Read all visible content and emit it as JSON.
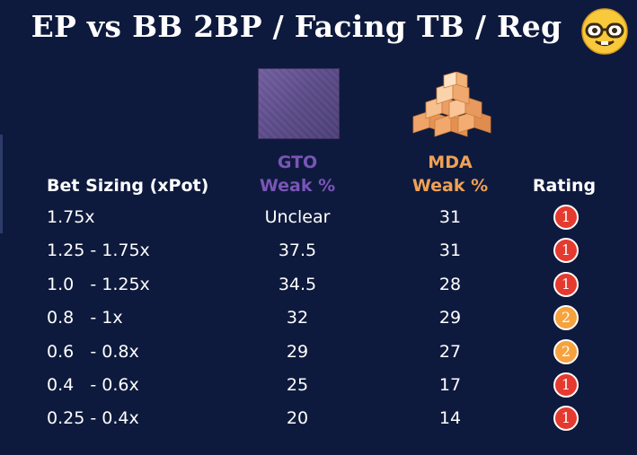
{
  "title": "EP vs BB 2BP / Facing TB / Reg",
  "emoji": "nerd-face-icon",
  "columns": {
    "bet_sizing": "Bet Sizing (xPot)",
    "gto_top": "GTO",
    "gto_bottom": "Weak %",
    "mda_top": "MDA",
    "mda_bottom": "Weak %",
    "rating": "Rating"
  },
  "colors": {
    "background": "#0e1a3d",
    "gto": "#7a55b8",
    "mda": "#f0a054",
    "rating_1": "#e53a2f",
    "rating_2": "#f6a23e"
  },
  "rows": [
    {
      "sizing": "1.75x",
      "gto": "Unclear",
      "mda": "31",
      "rating": "1"
    },
    {
      "sizing": "1.25 - 1.75x",
      "gto": "37.5",
      "mda": "31",
      "rating": "1"
    },
    {
      "sizing": "1.0   - 1.25x",
      "gto": "34.5",
      "mda": "28",
      "rating": "1"
    },
    {
      "sizing": "0.8   - 1x",
      "gto": "32",
      "mda": "29",
      "rating": "2"
    },
    {
      "sizing": "0.6   - 0.8x",
      "gto": "29",
      "mda": "27",
      "rating": "2"
    },
    {
      "sizing": "0.4   - 0.6x",
      "gto": "25",
      "mda": "17",
      "rating": "1"
    },
    {
      "sizing": "0.25 - 0.4x",
      "gto": "20",
      "mda": "14",
      "rating": "1"
    }
  ]
}
